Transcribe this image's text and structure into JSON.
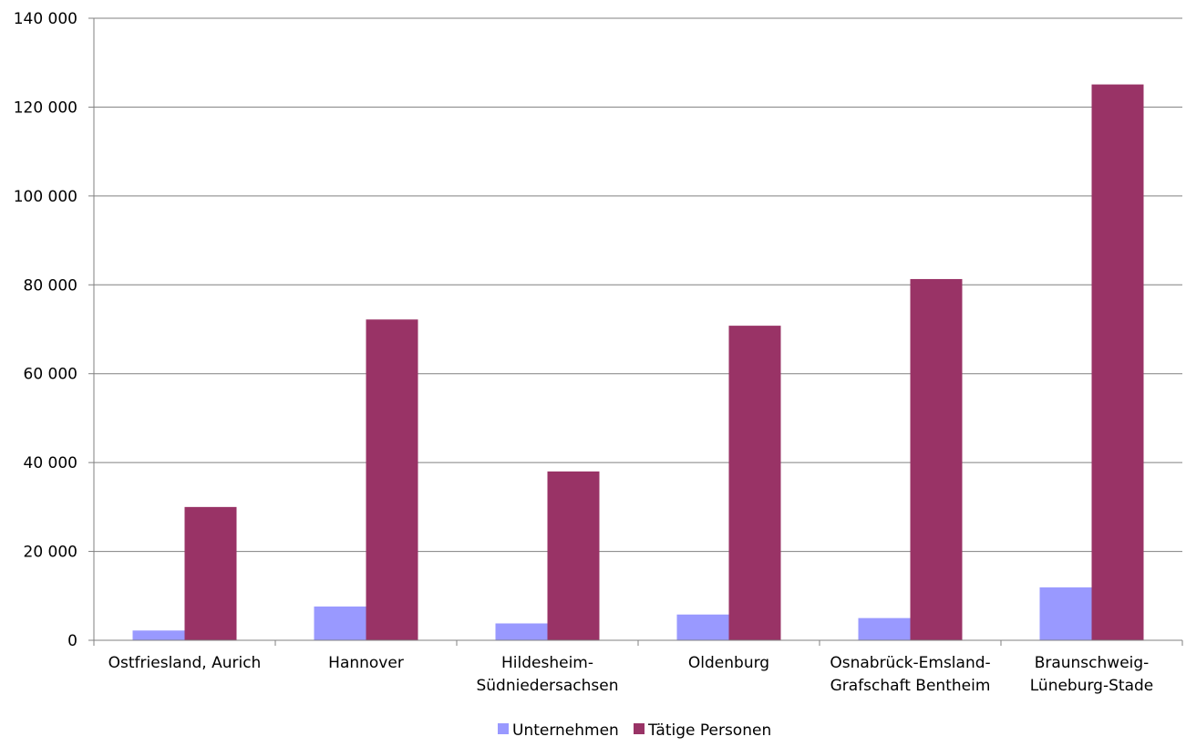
{
  "chart_data": {
    "type": "bar",
    "categories": [
      [
        "Ostfriesland, Aurich"
      ],
      [
        "Hannover"
      ],
      [
        "Hildesheim-",
        "Südniedersachsen"
      ],
      [
        "Oldenburg"
      ],
      [
        "Osnabrück-Emsland-",
        "Grafschaft Bentheim"
      ],
      [
        "Braunschweig-",
        "Lüneburg-Stade"
      ]
    ],
    "series": [
      {
        "name": "Unternehmen",
        "color": "#9999ff",
        "values": [
          2200,
          7600,
          3800,
          5800,
          5000,
          11900
        ]
      },
      {
        "name": "Tätige Personen",
        "color": "#993366",
        "values": [
          30000,
          72200,
          38000,
          70800,
          81300,
          125100
        ]
      }
    ],
    "ylim": [
      0,
      140000
    ],
    "yticks": [
      0,
      20000,
      40000,
      60000,
      80000,
      100000,
      120000,
      140000
    ],
    "ytick_labels": [
      "0",
      "20 000",
      "40 000",
      "60 000",
      "80 000",
      "100 000",
      "120 000",
      "140 000"
    ],
    "grid": true,
    "legend": "bottom-center"
  }
}
